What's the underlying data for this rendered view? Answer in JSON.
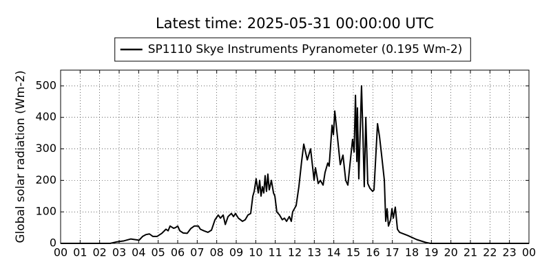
{
  "chart_data": {
    "type": "line",
    "title": "Latest time: 2025-05-31 00:00:00 UTC",
    "ylabel": "Global solar radiation (Wm-2)",
    "legend": "upper center",
    "grid": true,
    "xlim": [
      0,
      24
    ],
    "ylim": [
      0,
      550
    ],
    "yticks": [
      0,
      100,
      200,
      300,
      400,
      500
    ],
    "xticks": [
      {
        "value": 0,
        "label": "00"
      },
      {
        "value": 1,
        "label": "01"
      },
      {
        "value": 2,
        "label": "02"
      },
      {
        "value": 3,
        "label": "03"
      },
      {
        "value": 4,
        "label": "04"
      },
      {
        "value": 5,
        "label": "05"
      },
      {
        "value": 6,
        "label": "06"
      },
      {
        "value": 7,
        "label": "07"
      },
      {
        "value": 8,
        "label": "08"
      },
      {
        "value": 9,
        "label": "09"
      },
      {
        "value": 10,
        "label": "10"
      },
      {
        "value": 11,
        "label": "11"
      },
      {
        "value": 12,
        "label": "12"
      },
      {
        "value": 13,
        "label": "13"
      },
      {
        "value": 14,
        "label": "14"
      },
      {
        "value": 15,
        "label": "15"
      },
      {
        "value": 16,
        "label": "16"
      },
      {
        "value": 17,
        "label": "17"
      },
      {
        "value": 18,
        "label": "18"
      },
      {
        "value": 19,
        "label": "19"
      },
      {
        "value": 20,
        "label": "20"
      },
      {
        "value": 21,
        "label": "21"
      },
      {
        "value": 22,
        "label": "22"
      },
      {
        "value": 23,
        "label": "23"
      },
      {
        "value": 24,
        "label": "00"
      }
    ],
    "x": [
      0,
      2.54,
      2.89,
      3.25,
      3.6,
      3.81,
      4.02,
      4.2,
      4.38,
      4.55,
      4.73,
      4.94,
      5.19,
      5.4,
      5.51,
      5.61,
      5.79,
      5.89,
      6.0,
      6.11,
      6.28,
      6.49,
      6.67,
      6.85,
      7.06,
      7.16,
      7.34,
      7.55,
      7.73,
      7.91,
      8.08,
      8.19,
      8.33,
      8.44,
      8.58,
      8.75,
      8.86,
      8.96,
      9.11,
      9.32,
      9.46,
      9.6,
      9.74,
      9.85,
      9.92,
      10.02,
      10.13,
      10.2,
      10.27,
      10.34,
      10.41,
      10.48,
      10.55,
      10.62,
      10.69,
      10.8,
      10.91,
      10.98,
      11.08,
      11.22,
      11.36,
      11.47,
      11.58,
      11.72,
      11.82,
      11.89,
      12.07,
      12.21,
      12.35,
      12.46,
      12.64,
      12.81,
      12.99,
      13.06,
      13.2,
      13.31,
      13.45,
      13.55,
      13.69,
      13.76,
      13.91,
      13.98,
      14.05,
      14.15,
      14.33,
      14.47,
      14.61,
      14.72,
      14.86,
      14.96,
      15.04,
      15.11,
      15.18,
      15.21,
      15.28,
      15.42,
      15.49,
      15.56,
      15.64,
      15.74,
      15.85,
      15.99,
      16.06,
      16.24,
      16.34,
      16.45,
      16.59,
      16.66,
      16.73,
      16.8,
      16.91,
      16.98,
      17.05,
      17.15,
      17.26,
      17.37,
      17.79,
      18.25,
      18.71,
      18.95,
      24
    ],
    "series": [
      {
        "name": "SP1110 Skye Instruments Pyranometer (0.195 Wm-2)",
        "color": "#000000",
        "values": [
          0,
          0,
          5,
          8,
          14,
          12,
          10,
          22,
          28,
          30,
          22,
          22,
          32,
          45,
          40,
          55,
          48,
          50,
          55,
          40,
          33,
          32,
          47,
          55,
          55,
          45,
          40,
          35,
          42,
          75,
          90,
          80,
          90,
          60,
          85,
          95,
          85,
          95,
          80,
          70,
          75,
          90,
          95,
          150,
          165,
          205,
          160,
          200,
          150,
          180,
          160,
          215,
          165,
          220,
          170,
          200,
          160,
          150,
          100,
          90,
          75,
          80,
          70,
          85,
          70,
          100,
          120,
          180,
          260,
          315,
          265,
          300,
          200,
          240,
          190,
          200,
          185,
          225,
          255,
          245,
          375,
          345,
          420,
          360,
          250,
          280,
          200,
          185,
          270,
          330,
          290,
          470,
          260,
          430,
          205,
          500,
          350,
          180,
          400,
          190,
          175,
          165,
          170,
          380,
          340,
          280,
          200,
          70,
          110,
          55,
          75,
          110,
          80,
          115,
          45,
          35,
          25,
          12,
          3,
          0,
          0
        ]
      }
    ]
  }
}
